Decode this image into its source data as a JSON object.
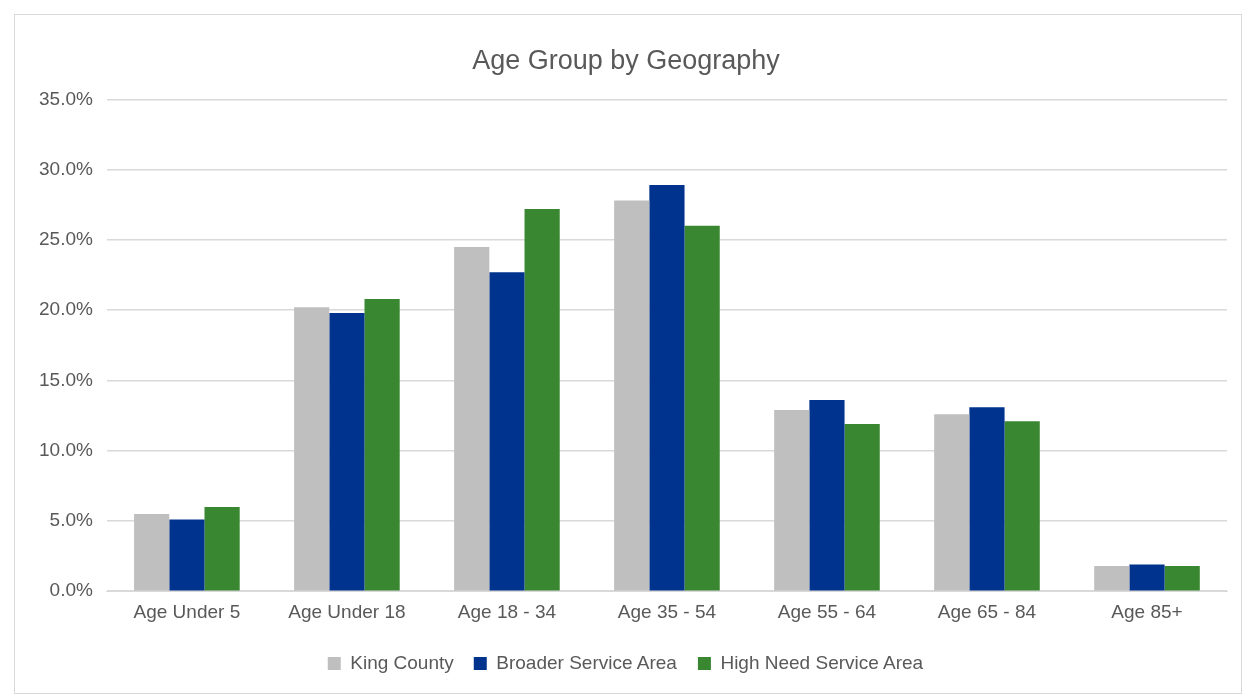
{
  "chart_data": {
    "type": "bar",
    "title": "Age Group by Geography",
    "categories": [
      "Age Under 5",
      "Age Under 18",
      "Age 18 - 34",
      "Age 35 - 54",
      "Age 55 - 64",
      "Age 65 - 84",
      "Age 85+"
    ],
    "series": [
      {
        "name": "King County",
        "color": "#bfbfbf",
        "values": [
          5.5,
          20.2,
          24.5,
          27.8,
          12.9,
          12.6,
          1.8
        ]
      },
      {
        "name": "Broader Service Area",
        "color": "#00338d",
        "values": [
          5.1,
          19.8,
          22.7,
          28.9,
          13.6,
          13.1,
          1.9
        ]
      },
      {
        "name": "High Need Service Area",
        "color": "#3a8731",
        "values": [
          6.0,
          20.8,
          27.2,
          26.0,
          11.9,
          12.1,
          1.8
        ]
      }
    ],
    "ylim": [
      0,
      35
    ],
    "yticks": [
      {
        "value": 0,
        "label": "0.0%"
      },
      {
        "value": 5,
        "label": "5.0%"
      },
      {
        "value": 10,
        "label": "10.0%"
      },
      {
        "value": 15,
        "label": "15.0%"
      },
      {
        "value": 20,
        "label": "20.0%"
      },
      {
        "value": 25,
        "label": "25.0%"
      },
      {
        "value": 30,
        "label": "30.0%"
      },
      {
        "value": 35,
        "label": "35.0%"
      }
    ],
    "grid": "y",
    "legend": "bottom"
  }
}
